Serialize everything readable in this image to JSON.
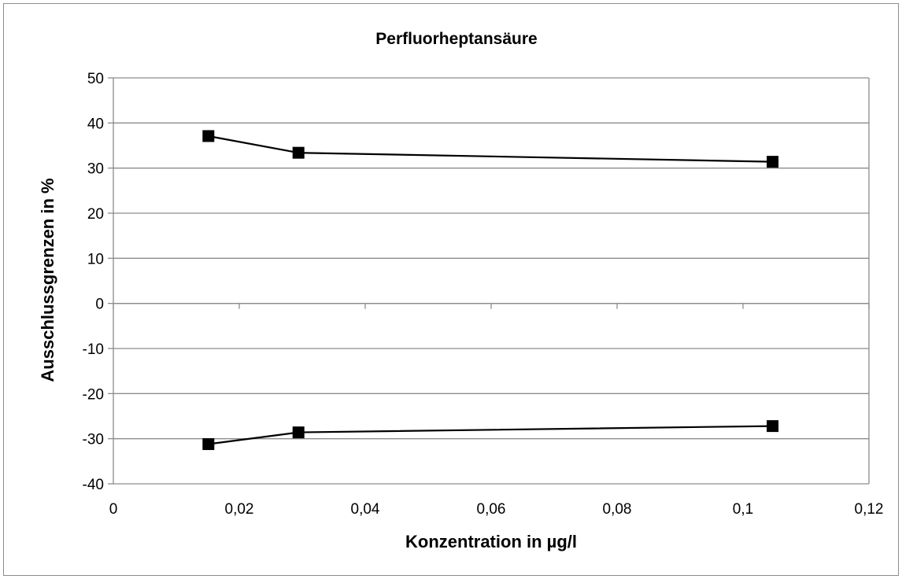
{
  "chart_data": {
    "type": "line",
    "title": "Perfluorheptansäure",
    "xlabel": "Konzentration in µg/l",
    "ylabel": "Ausschlussgrenzen in %",
    "xlim": [
      0,
      0.12
    ],
    "ylim": [
      -40,
      50
    ],
    "x_ticks": [
      0,
      0.02,
      0.04,
      0.06,
      0.08,
      0.1,
      0.12
    ],
    "x_tick_labels": [
      "0",
      "0,02",
      "0,04",
      "0,06",
      "0,08",
      "0,1",
      "0,12"
    ],
    "y_ticks": [
      -40,
      -30,
      -20,
      -10,
      0,
      10,
      20,
      30,
      40,
      50
    ],
    "y_tick_labels": [
      "-40",
      "-30",
      "-20",
      "-10",
      "0",
      "10",
      "20",
      "30",
      "40",
      "50"
    ],
    "grid": "horizontal",
    "legend": "none",
    "marker": "square",
    "series_color": "#000000",
    "series": [
      {
        "x": [
          0.0151,
          0.0294,
          0.1047
        ],
        "y": [
          37.1,
          33.4,
          31.4
        ]
      },
      {
        "x": [
          0.0151,
          0.0294,
          0.1047
        ],
        "y": [
          -31.2,
          -28.6,
          -27.2
        ]
      }
    ]
  }
}
